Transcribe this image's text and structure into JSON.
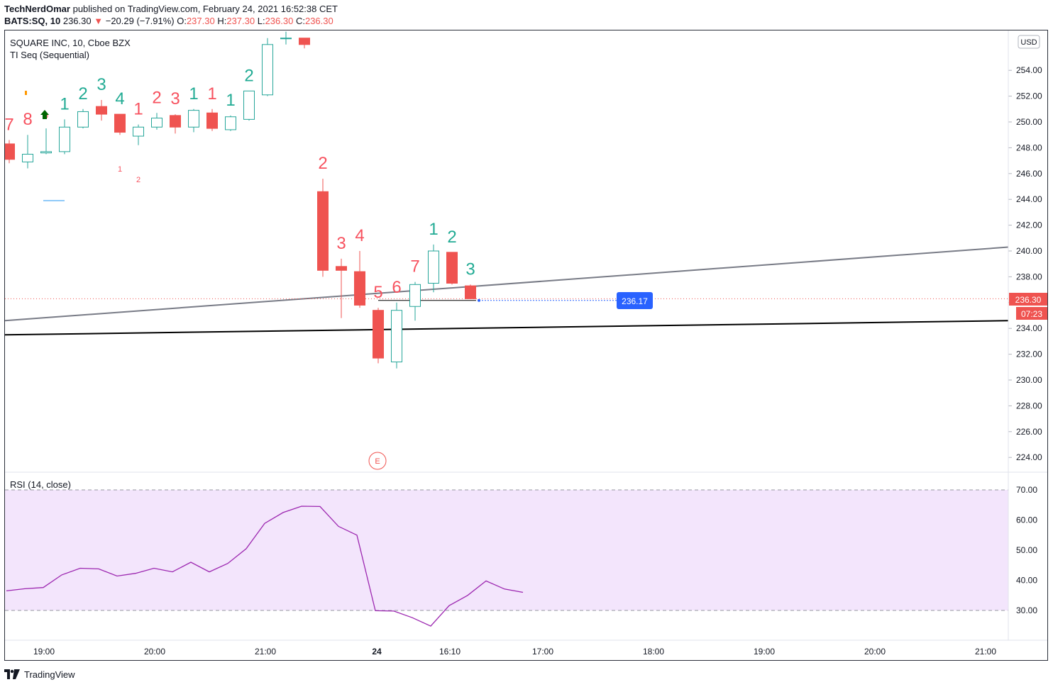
{
  "header": {
    "author": "TechNerdOmar",
    "published": "published on TradingView.com, February 24, 2021 16:52:38 CET",
    "symbol": "BATS:SQ, 10",
    "last": "236.30",
    "change": "−20.29 (−7.91%)",
    "o_label": "O:",
    "o_value": "237.30",
    "h_label": "H:",
    "h_value": "237.30",
    "l_label": "L:",
    "l_value": "236.30",
    "c_label": "C:",
    "c_value": "236.30"
  },
  "legend": {
    "title": "SQUARE INC, 10, Cboe BZX",
    "indicator": "TI Seq (Sequential)",
    "rsi_title": "RSI (14, close)"
  },
  "badges": {
    "currency": "USD",
    "price": "236.30",
    "countdown": "07:23",
    "bid": "236.17",
    "event": "E"
  },
  "footer": {
    "brand": "TradingView"
  },
  "colors": {
    "up": "#26a69a",
    "down": "#ef5350",
    "rsi": "#9c27b0",
    "rsi_band": "#f3e5fc",
    "label_up": "#22ab94",
    "label_down": "#f7525f"
  },
  "chart_data": [
    {
      "type": "candlestick",
      "title": "SQUARE INC, 10, Cboe BZX",
      "ylim": [
        222.5,
        256.5
      ],
      "y_ticks": [
        "224.00",
        "226.00",
        "228.00",
        "230.00",
        "232.00",
        "234.00",
        "236.00",
        "238.00",
        "240.00",
        "242.00",
        "244.00",
        "246.00",
        "248.00",
        "250.00",
        "252.00",
        "254.00"
      ],
      "x_ticks": [
        "19:00",
        "20:00",
        "21:00",
        "24",
        "16:10",
        "17:00",
        "18:00",
        "19:00",
        "20:00",
        "21:00"
      ],
      "candles": [
        {
          "o": 248.3,
          "h": 248.6,
          "l": 246.8,
          "c": 247.1
        },
        {
          "o": 246.9,
          "h": 249.0,
          "l": 246.4,
          "c": 247.5
        },
        {
          "o": 247.6,
          "h": 249.5,
          "l": 247.5,
          "c": 247.7
        },
        {
          "o": 247.7,
          "h": 250.2,
          "l": 247.5,
          "c": 249.6
        },
        {
          "o": 249.6,
          "h": 251.0,
          "l": 249.5,
          "c": 250.8
        },
        {
          "o": 251.2,
          "h": 251.7,
          "l": 250.1,
          "c": 250.6
        },
        {
          "o": 250.6,
          "h": 250.6,
          "l": 249.0,
          "c": 249.2
        },
        {
          "o": 248.9,
          "h": 249.8,
          "l": 248.2,
          "c": 249.6
        },
        {
          "o": 249.6,
          "h": 250.7,
          "l": 249.4,
          "c": 250.3
        },
        {
          "o": 250.5,
          "h": 250.6,
          "l": 249.1,
          "c": 249.6
        },
        {
          "o": 249.6,
          "h": 251.0,
          "l": 249.2,
          "c": 250.9
        },
        {
          "o": 250.7,
          "h": 251.0,
          "l": 249.3,
          "c": 249.5
        },
        {
          "o": 249.4,
          "h": 250.5,
          "l": 249.3,
          "c": 250.4
        },
        {
          "o": 250.2,
          "h": 252.4,
          "l": 250.1,
          "c": 252.4
        },
        {
          "o": 252.1,
          "h": 256.5,
          "l": 252.0,
          "c": 256.0
        },
        {
          "o": 256.5,
          "h": 257.0,
          "l": 256.0,
          "c": 256.5
        },
        {
          "o": 256.5,
          "h": 256.5,
          "l": 255.7,
          "c": 256.0
        },
        {
          "o": 244.6,
          "h": 245.6,
          "l": 238.0,
          "c": 238.5
        },
        {
          "o": 238.8,
          "h": 239.4,
          "l": 234.8,
          "c": 238.5
        },
        {
          "o": 238.4,
          "h": 240.0,
          "l": 235.6,
          "c": 235.8
        },
        {
          "o": 235.4,
          "h": 235.6,
          "l": 231.3,
          "c": 231.7
        },
        {
          "o": 231.4,
          "h": 236.0,
          "l": 230.9,
          "c": 235.4
        },
        {
          "o": 235.7,
          "h": 237.6,
          "l": 234.6,
          "c": 237.4
        },
        {
          "o": 237.5,
          "h": 240.5,
          "l": 236.8,
          "c": 240.0
        },
        {
          "o": 239.9,
          "h": 239.9,
          "l": 237.4,
          "c": 237.5
        },
        {
          "o": 237.3,
          "h": 237.4,
          "l": 236.3,
          "c": 236.3
        }
      ],
      "seq_labels": [
        {
          "i": 0,
          "text": "7",
          "dir": "down"
        },
        {
          "i": 1,
          "text": "8",
          "dir": "down"
        },
        {
          "i": 2,
          "text": "9",
          "dir": "down",
          "small": true
        },
        {
          "i": 3,
          "text": "1",
          "dir": "up"
        },
        {
          "i": 4,
          "text": "2",
          "dir": "up"
        },
        {
          "i": 5,
          "text": "3",
          "dir": "up"
        },
        {
          "i": 6,
          "text": "4",
          "dir": "up"
        },
        {
          "i": 7,
          "text": "1",
          "dir": "down"
        },
        {
          "i": 8,
          "text": "2",
          "dir": "down"
        },
        {
          "i": 9,
          "text": "3",
          "dir": "down"
        },
        {
          "i": 10,
          "text": "1",
          "dir": "up"
        },
        {
          "i": 11,
          "text": "1",
          "dir": "down"
        },
        {
          "i": 12,
          "text": "1",
          "dir": "up"
        },
        {
          "i": 13,
          "text": "2",
          "dir": "up"
        },
        {
          "i": 17,
          "text": "2",
          "dir": "down"
        },
        {
          "i": 18,
          "text": "3",
          "dir": "down"
        },
        {
          "i": 19,
          "text": "4",
          "dir": "down"
        },
        {
          "i": 20,
          "text": "5",
          "dir": "down"
        },
        {
          "i": 21,
          "text": "6",
          "dir": "down"
        },
        {
          "i": 22,
          "text": "7",
          "dir": "down"
        },
        {
          "i": 23,
          "text": "1",
          "dir": "up"
        },
        {
          "i": 24,
          "text": "2",
          "dir": "up"
        },
        {
          "i": 25,
          "text": "3",
          "dir": "up"
        }
      ],
      "low_labels": [
        {
          "i": 6,
          "text": "1"
        },
        {
          "i": 7,
          "text": "2"
        }
      ],
      "trendlines": [
        {
          "name": "upper-trendline",
          "y_start": 234.6,
          "y_end": 240.3,
          "color": "#787b86"
        },
        {
          "name": "lower-trendline",
          "y_start": 233.5,
          "y_end": 234.6,
          "color": "#000000"
        }
      ],
      "last_price": 236.3,
      "bid": 236.17
    },
    {
      "type": "line",
      "title": "RSI (14, close)",
      "ylim": [
        25,
        74
      ],
      "y_ticks": [
        "30.00",
        "40.00",
        "50.00",
        "60.00",
        "70.00"
      ],
      "band": [
        30,
        70
      ],
      "values": [
        36.5,
        37.2,
        37.6,
        41.8,
        44.0,
        43.8,
        41.4,
        42.3,
        44.0,
        42.8,
        46.0,
        42.8,
        45.6,
        50.5,
        58.9,
        62.5,
        64.6,
        64.5,
        57.9,
        55.0,
        29.9,
        29.8,
        27.6,
        24.8,
        31.6,
        35.0,
        39.8,
        37.1,
        36.0
      ]
    }
  ]
}
